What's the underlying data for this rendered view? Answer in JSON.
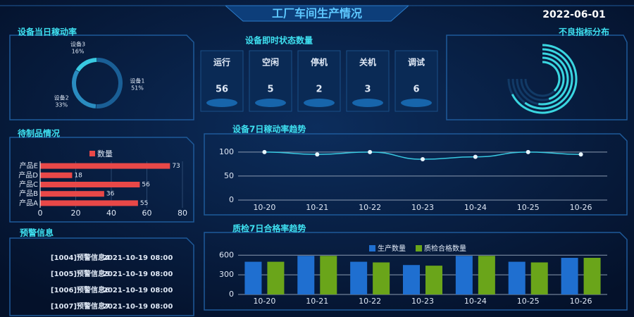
{
  "header": {
    "title": "工厂车间生产情况",
    "date": "2022-06-01"
  },
  "status": {
    "title": "设备即时状态数量",
    "items": [
      {
        "label": "运行",
        "value": 56,
        "color": "#7ee07e"
      },
      {
        "label": "空闲",
        "value": 5,
        "color": "#ffffff"
      },
      {
        "label": "停机",
        "value": 2,
        "color": "#f0a050"
      },
      {
        "label": "关机",
        "value": 3,
        "color": "#e82828"
      },
      {
        "label": "调试",
        "value": 6,
        "color": "#3aa0f0"
      }
    ]
  },
  "warnings": {
    "title": "预警信息",
    "rows": [
      {
        "id": "[1004]预警信息4",
        "time": "2021-10-19 08:00"
      },
      {
        "id": "[1005]预警信息5",
        "time": "2021-10-19 08:00"
      },
      {
        "id": "[1006]预警信息6",
        "time": "2021-10-19 08:00"
      },
      {
        "id": "[1007]预警信息7",
        "time": "2021-10-19 08:00"
      }
    ]
  },
  "chart_data": [
    {
      "type": "pie",
      "title": "设备当日稼动率",
      "categories": [
        "设备1",
        "设备2",
        "设备3"
      ],
      "values": [
        51,
        33,
        16
      ],
      "value_labels": [
        "51%",
        "33%",
        "16%"
      ],
      "colors": [
        "#1a5f96",
        "#2a8cc0",
        "#38c8e0"
      ]
    },
    {
      "type": "radialBar",
      "title": "不良指标分布",
      "categories": [
        null,
        null,
        null,
        null,
        null
      ],
      "values": [
        90,
        80,
        70,
        60,
        50
      ],
      "valuelim": [
        0,
        100
      ],
      "color": "#3ad6e0"
    },
    {
      "type": "hbar",
      "title": "待制品情况",
      "categories": [
        "产品A",
        "产品B",
        "产品C",
        "产品D",
        "产品E"
      ],
      "series": [
        {
          "name": "数量",
          "color": "#e84848",
          "values": [
            55,
            36,
            56,
            18,
            73
          ]
        }
      ],
      "xlim": [
        0,
        80
      ],
      "xticks": [
        0,
        20,
        40,
        60,
        80
      ],
      "grid": true
    },
    {
      "type": "line",
      "title": "设备7日稼动率趋势",
      "categories": [
        "10-20",
        "10-21",
        "10-22",
        "10-23",
        "10-24",
        "10-25",
        "10-26"
      ],
      "values": [
        100,
        95,
        100,
        85,
        90,
        100,
        95
      ],
      "color": "#38c8e0",
      "ylim": [
        0,
        110
      ],
      "yticks": [
        0,
        50,
        100
      ],
      "grid": true
    },
    {
      "type": "groupedBar",
      "title": "质检7日合格率趋势",
      "categories": [
        "10-20",
        "10-21",
        "10-22",
        "10-23",
        "10-24",
        "10-25",
        "10-26"
      ],
      "series": [
        {
          "name": "生产数量",
          "color": "#1f6fd0",
          "values": [
            500,
            590,
            500,
            450,
            590,
            500,
            560
          ]
        },
        {
          "name": "质检合格数量",
          "color": "#6aa51a",
          "values": [
            500,
            590,
            490,
            440,
            590,
            490,
            560
          ]
        }
      ],
      "ylim": [
        0,
        700
      ],
      "yticks": [
        0,
        300,
        600
      ],
      "grid": true
    }
  ]
}
